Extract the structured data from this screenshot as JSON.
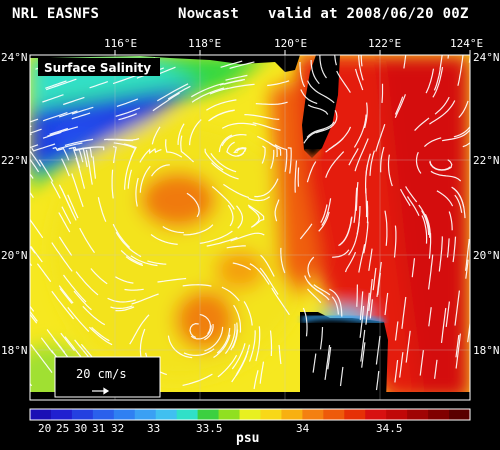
{
  "header": {
    "left": "NRL EASNFS",
    "center": "Nowcast",
    "right": "valid at 2008/06/20 00Z"
  },
  "map": {
    "panel_label": "Surface Salinity",
    "lon_labels": [
      "116°E",
      "118°E",
      "120°E",
      "122°E",
      "124°E"
    ],
    "lat_labels_left": [
      "24°N",
      "22°N",
      "20°N",
      "18°N"
    ],
    "lat_labels_right": [
      "24°N",
      "22°N",
      "20°N",
      "18°N"
    ],
    "vector_scale_label": "20 cm/s",
    "colors": {
      "land": "#000000",
      "background": "#000000",
      "vectors": "#ffffff"
    }
  },
  "colorbar": {
    "unit": "psu",
    "tick_labels": [
      "20",
      "25",
      "30",
      "31",
      "32",
      "33",
      "33.5",
      "34",
      "34.5"
    ],
    "colors": [
      "#1a0fb5",
      "#2020d0",
      "#2440e0",
      "#2a60ec",
      "#2f80f2",
      "#3aa0f4",
      "#40c0f0",
      "#30e0c8",
      "#3cd040",
      "#90e020",
      "#e8f020",
      "#f8d818",
      "#f8b010",
      "#f48010",
      "#ee5a0a",
      "#e63006",
      "#d81010",
      "#c00808",
      "#a00404",
      "#800000",
      "#5a0000"
    ]
  }
}
